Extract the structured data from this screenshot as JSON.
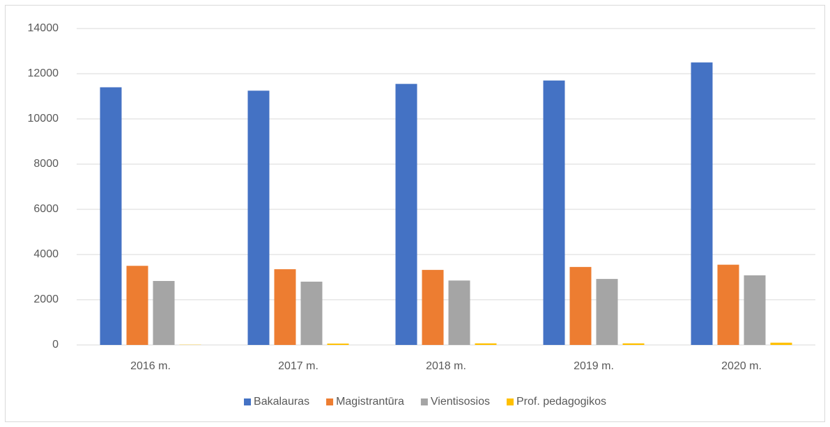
{
  "chart_data": {
    "type": "bar",
    "categories": [
      "2016 m.",
      "2017 m.",
      "2018 m.",
      "2019 m.",
      "2020 m."
    ],
    "series": [
      {
        "name": "Bakalauras",
        "color": "#4472c4",
        "values": [
          11400,
          11250,
          11550,
          11700,
          12500
        ]
      },
      {
        "name": "Magistrantūra",
        "color": "#ed7d31",
        "values": [
          3500,
          3350,
          3320,
          3450,
          3550
        ]
      },
      {
        "name": "Vientisosios",
        "color": "#a5a5a5",
        "values": [
          2830,
          2800,
          2850,
          2920,
          3080
        ]
      },
      {
        "name": "Prof. pedagogikos",
        "color": "#ffc000",
        "values": [
          10,
          60,
          70,
          70,
          100
        ]
      }
    ],
    "ylim": [
      0,
      14000
    ],
    "yticks": [
      0,
      2000,
      4000,
      6000,
      8000,
      10000,
      12000,
      14000
    ],
    "grid": true,
    "legend": "bottom"
  }
}
